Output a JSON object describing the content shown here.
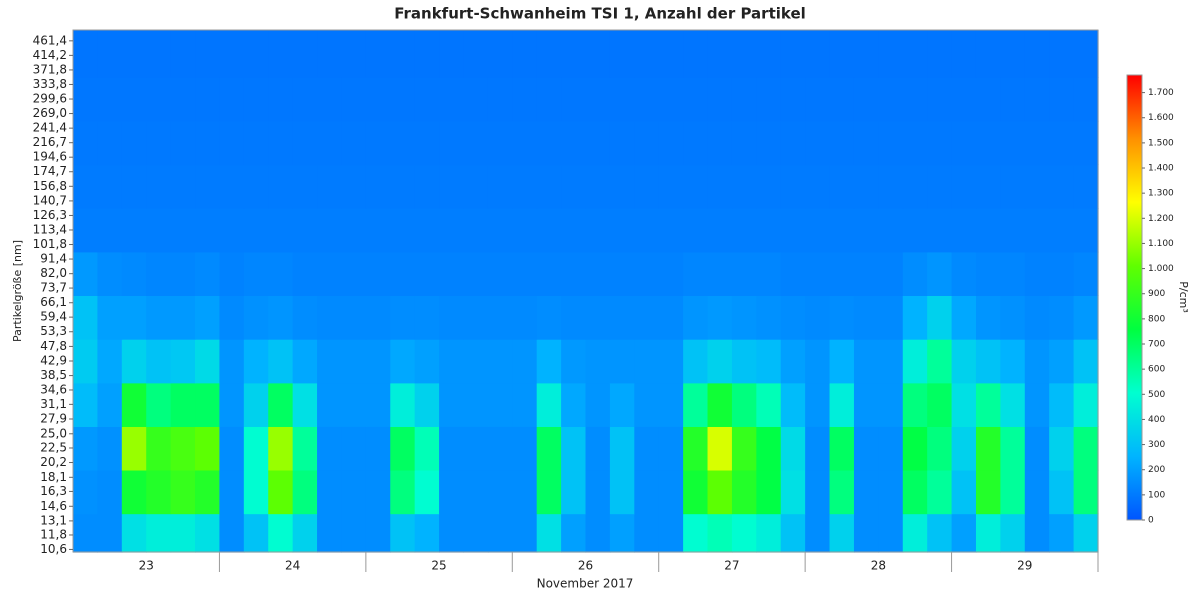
{
  "chart_data": {
    "type": "heatmap",
    "title": "Frankfurt-Schwanheim TSI 1, Anzahl der Partikel",
    "ylabel": "Partikelgröße [nm]",
    "xlabel": "November 2017",
    "categories": [
      "23",
      "24",
      "25",
      "26",
      "27",
      "28",
      "29"
    ],
    "yscale": "log",
    "ylim": [
      10.4,
      500
    ],
    "yticks": [
      {
        "value": 10.6,
        "label": "10,6"
      },
      {
        "value": 11.8,
        "label": "11,8"
      },
      {
        "value": 13.1,
        "label": "13,1"
      },
      {
        "value": 14.6,
        "label": "14,6"
      },
      {
        "value": 16.3,
        "label": "16,3"
      },
      {
        "value": 18.1,
        "label": "18,1"
      },
      {
        "value": 20.2,
        "label": "20,2"
      },
      {
        "value": 22.5,
        "label": "22,5"
      },
      {
        "value": 25.0,
        "label": "25,0"
      },
      {
        "value": 27.9,
        "label": "27,9"
      },
      {
        "value": 31.1,
        "label": "31,1"
      },
      {
        "value": 34.6,
        "label": "34,6"
      },
      {
        "value": 38.5,
        "label": "38,5"
      },
      {
        "value": 42.9,
        "label": "42,9"
      },
      {
        "value": 47.8,
        "label": "47,8"
      },
      {
        "value": 53.3,
        "label": "53,3"
      },
      {
        "value": 59.4,
        "label": "59,4"
      },
      {
        "value": 66.1,
        "label": "66,1"
      },
      {
        "value": 73.7,
        "label": "73,7"
      },
      {
        "value": 82.0,
        "label": "82,0"
      },
      {
        "value": 91.4,
        "label": "91,4"
      },
      {
        "value": 101.8,
        "label": "101,8"
      },
      {
        "value": 113.4,
        "label": "113,4"
      },
      {
        "value": 126.3,
        "label": "126,3"
      },
      {
        "value": 140.7,
        "label": "140,7"
      },
      {
        "value": 156.8,
        "label": "156,8"
      },
      {
        "value": 174.7,
        "label": "174,7"
      },
      {
        "value": 194.6,
        "label": "194,6"
      },
      {
        "value": 216.7,
        "label": "216,7"
      },
      {
        "value": 241.4,
        "label": "241,4"
      },
      {
        "value": 269.0,
        "label": "269,0"
      },
      {
        "value": 299.6,
        "label": "299,6"
      },
      {
        "value": 333.8,
        "label": "333,8"
      },
      {
        "value": 371.8,
        "label": "371,8"
      },
      {
        "value": 414.2,
        "label": "414,2"
      },
      {
        "value": 461.4,
        "label": "461,4"
      }
    ],
    "colorbar_label": "P/cm³",
    "zlim": [
      0,
      1770
    ],
    "zticks": [
      0,
      100,
      200,
      300,
      400,
      500,
      600,
      700,
      800,
      900,
      {
        "value": 1000,
        "label": "1.000"
      },
      {
        "value": 1100,
        "label": "1.100"
      },
      {
        "value": 1200,
        "label": "1.200"
      },
      {
        "value": 1300,
        "label": "1.300"
      },
      {
        "value": 1400,
        "label": "1.400"
      },
      {
        "value": 1500,
        "label": "1.500"
      },
      {
        "value": 1600,
        "label": "1.600"
      },
      {
        "value": 1700,
        "label": "1.700"
      }
    ],
    "colormap": [
      "#0055ff",
      "#00b4ff",
      "#00ffd0",
      "#00ff40",
      "#60ff00",
      "#ffff00",
      "#ff9000",
      "#ff0000"
    ],
    "z": [
      [
        150,
        150,
        400,
        450,
        450,
        400,
        150,
        300,
        500,
        350,
        150,
        150,
        150,
        300,
        250,
        150,
        150,
        150,
        150,
        400,
        200,
        150,
        200,
        150,
        150,
        500,
        550,
        500,
        450,
        300,
        150,
        350,
        150,
        150,
        450,
        300,
        200,
        450,
        350,
        150,
        200,
        350
      ],
      [
        160,
        150,
        800,
        850,
        900,
        850,
        150,
        500,
        1000,
        650,
        150,
        150,
        150,
        650,
        500,
        150,
        150,
        150,
        150,
        700,
        300,
        150,
        300,
        150,
        150,
        800,
        1000,
        850,
        750,
        400,
        150,
        650,
        150,
        150,
        700,
        600,
        300,
        850,
        600,
        150,
        300,
        650
      ],
      [
        180,
        160,
        1100,
        900,
        950,
        1000,
        150,
        500,
        1100,
        600,
        150,
        150,
        150,
        700,
        550,
        150,
        150,
        150,
        150,
        700,
        300,
        150,
        300,
        150,
        150,
        850,
        1200,
        900,
        750,
        380,
        150,
        700,
        150,
        150,
        750,
        650,
        350,
        850,
        600,
        150,
        350,
        650
      ],
      [
        280,
        200,
        800,
        650,
        700,
        700,
        170,
        350,
        700,
        400,
        170,
        170,
        170,
        450,
        350,
        170,
        170,
        170,
        170,
        450,
        220,
        170,
        220,
        170,
        170,
        600,
        800,
        650,
        550,
        280,
        170,
        450,
        170,
        170,
        650,
        700,
        400,
        600,
        400,
        170,
        280,
        450
      ],
      [
        330,
        220,
        350,
        300,
        320,
        380,
        170,
        250,
        300,
        220,
        170,
        170,
        170,
        220,
        200,
        170,
        170,
        170,
        170,
        250,
        180,
        170,
        170,
        170,
        170,
        300,
        350,
        300,
        280,
        200,
        170,
        250,
        170,
        170,
        450,
        600,
        350,
        300,
        250,
        170,
        200,
        300
      ],
      [
        300,
        200,
        200,
        180,
        180,
        200,
        140,
        160,
        170,
        150,
        140,
        140,
        140,
        150,
        150,
        140,
        140,
        140,
        140,
        150,
        140,
        140,
        140,
        140,
        140,
        170,
        180,
        170,
        160,
        150,
        140,
        150,
        140,
        140,
        250,
        350,
        220,
        170,
        160,
        140,
        150,
        180
      ],
      [
        180,
        150,
        140,
        130,
        130,
        140,
        120,
        130,
        130,
        120,
        120,
        120,
        120,
        120,
        120,
        120,
        120,
        120,
        120,
        120,
        120,
        120,
        120,
        120,
        120,
        130,
        130,
        130,
        130,
        120,
        120,
        120,
        120,
        120,
        150,
        170,
        140,
        130,
        130,
        120,
        120,
        130
      ],
      [
        110,
        110,
        110,
        110,
        110,
        110,
        110,
        110,
        110,
        110,
        110,
        110,
        110,
        110,
        110,
        110,
        110,
        110,
        110,
        110,
        110,
        110,
        110,
        110,
        110,
        110,
        110,
        110,
        110,
        110,
        110,
        110,
        110,
        110,
        110,
        110,
        110,
        110,
        110,
        110,
        110,
        110
      ],
      [
        100,
        100,
        100,
        100,
        100,
        100,
        100,
        100,
        100,
        100,
        100,
        100,
        100,
        100,
        100,
        100,
        100,
        100,
        100,
        100,
        100,
        100,
        100,
        100,
        100,
        100,
        100,
        100,
        100,
        100,
        100,
        100,
        100,
        100,
        100,
        100,
        100,
        100,
        100,
        100,
        100,
        100
      ],
      [
        95,
        95,
        95,
        95,
        95,
        95,
        95,
        95,
        95,
        95,
        95,
        95,
        95,
        95,
        95,
        95,
        95,
        95,
        95,
        95,
        95,
        95,
        95,
        95,
        95,
        95,
        95,
        95,
        95,
        95,
        95,
        95,
        95,
        95,
        95,
        95,
        95,
        95,
        95,
        95,
        95,
        95
      ],
      [
        90,
        90,
        90,
        90,
        90,
        90,
        90,
        90,
        90,
        90,
        90,
        90,
        90,
        90,
        90,
        90,
        90,
        90,
        90,
        90,
        90,
        90,
        90,
        90,
        90,
        90,
        90,
        90,
        90,
        90,
        90,
        90,
        90,
        90,
        90,
        90,
        90,
        90,
        90,
        90,
        90,
        90
      ],
      [
        85,
        85,
        85,
        85,
        85,
        85,
        85,
        85,
        85,
        85,
        85,
        85,
        85,
        85,
        85,
        85,
        85,
        85,
        85,
        85,
        85,
        85,
        85,
        85,
        85,
        85,
        85,
        85,
        85,
        85,
        85,
        85,
        85,
        85,
        85,
        85,
        85,
        85,
        85,
        85,
        85,
        85
      ]
    ]
  }
}
